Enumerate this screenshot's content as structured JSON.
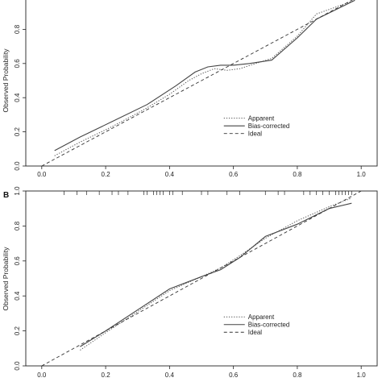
{
  "chart_data": [
    {
      "type": "line",
      "panel_label": "",
      "ylabel": "Observed Probability",
      "xlim": [
        -0.05,
        1.05
      ],
      "ylim": [
        0.0,
        1.0
      ],
      "x_ticks": [
        "0.0",
        "0.2",
        "0.4",
        "0.6",
        "0.8",
        "1.0"
      ],
      "y_ticks": [
        "0.0",
        "0.2",
        "0.4",
        "0.6",
        "0.8"
      ],
      "legend": {
        "placement": "bottom-right",
        "entries": [
          "Apparent",
          "Bias-corrected",
          "Ideal"
        ]
      },
      "series": [
        {
          "name": "Apparent",
          "style": "dotted",
          "x": [
            0.04,
            0.12,
            0.22,
            0.32,
            0.4,
            0.46,
            0.5,
            0.54,
            0.58,
            0.62,
            0.72,
            0.8,
            0.86,
            0.98
          ],
          "y": [
            0.06,
            0.14,
            0.23,
            0.33,
            0.42,
            0.5,
            0.54,
            0.57,
            0.56,
            0.57,
            0.63,
            0.76,
            0.89,
            0.97
          ]
        },
        {
          "name": "Bias-corrected",
          "style": "solid",
          "x": [
            0.04,
            0.12,
            0.22,
            0.33,
            0.42,
            0.48,
            0.52,
            0.56,
            0.6,
            0.65,
            0.72,
            0.8,
            0.86,
            0.98
          ],
          "y": [
            0.09,
            0.17,
            0.26,
            0.36,
            0.47,
            0.55,
            0.58,
            0.59,
            0.59,
            0.6,
            0.62,
            0.75,
            0.86,
            0.97
          ]
        },
        {
          "name": "Ideal",
          "style": "dashed",
          "x": [
            0.0,
            1.0
          ],
          "y": [
            0.0,
            1.0
          ]
        }
      ]
    },
    {
      "type": "line",
      "panel_label": "B",
      "ylabel": "Observed Probability",
      "xlim": [
        -0.05,
        1.05
      ],
      "ylim": [
        0.0,
        1.0
      ],
      "x_ticks": [
        "0.0",
        "0.2",
        "0.4",
        "0.6",
        "0.8",
        "1.0"
      ],
      "y_ticks": [
        "0.0",
        "0.2",
        "0.4",
        "0.6",
        "0.8",
        "1.0"
      ],
      "legend": {
        "placement": "bottom-right",
        "entries": [
          "Apparent",
          "Bias-corrected",
          "Ideal"
        ]
      },
      "rug": [
        0.07,
        0.11,
        0.14,
        0.18,
        0.22,
        0.24,
        0.27,
        0.32,
        0.33,
        0.35,
        0.36,
        0.37,
        0.38,
        0.4,
        0.41,
        0.44,
        0.5,
        0.52,
        0.58,
        0.62,
        0.7,
        0.74,
        0.76,
        0.82,
        0.84,
        0.86,
        0.88,
        0.9,
        0.92,
        0.93,
        0.94,
        0.95,
        0.96,
        0.97
      ],
      "series": [
        {
          "name": "Apparent",
          "style": "dotted",
          "x": [
            0.12,
            0.2,
            0.3,
            0.4,
            0.5,
            0.56,
            0.62,
            0.7,
            0.8,
            0.9,
            0.97
          ],
          "y": [
            0.09,
            0.19,
            0.31,
            0.43,
            0.51,
            0.56,
            0.63,
            0.73,
            0.83,
            0.91,
            0.96
          ]
        },
        {
          "name": "Bias-corrected",
          "style": "solid",
          "x": [
            0.12,
            0.2,
            0.3,
            0.4,
            0.5,
            0.56,
            0.62,
            0.7,
            0.8,
            0.9,
            0.97
          ],
          "y": [
            0.11,
            0.2,
            0.32,
            0.44,
            0.51,
            0.55,
            0.62,
            0.74,
            0.81,
            0.9,
            0.93
          ]
        },
        {
          "name": "Ideal",
          "style": "dashed",
          "x": [
            0.0,
            1.0
          ],
          "y": [
            0.0,
            1.0
          ]
        }
      ]
    }
  ]
}
